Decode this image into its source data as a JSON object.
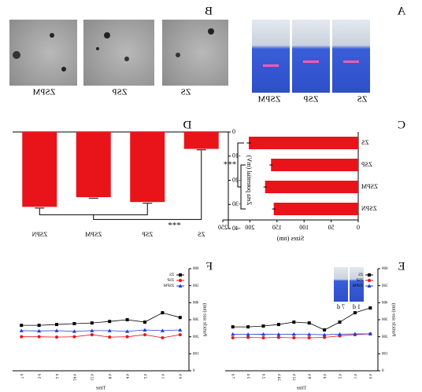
{
  "figure": {
    "panel_labels": [
      "A",
      "B",
      "C",
      "D",
      "E",
      "F"
    ],
    "photo_labels": [
      "ZS",
      "ZSP",
      "ZSPM"
    ],
    "tem_labels": [
      "ZS",
      "ZSP",
      "ZSPM"
    ],
    "inset_labels": [
      "1 d",
      "7 d"
    ]
  },
  "chart_data": [
    {
      "type": "hbar",
      "categories": [
        "ZS",
        "ZSP",
        "ZSPM",
        "ZSPN"
      ],
      "values": [
        202,
        161,
        172,
        156
      ],
      "errors": [
        4,
        3,
        3,
        3
      ],
      "color": "#e8141a",
      "xlim": [
        0,
        250
      ],
      "xticks": [
        0,
        50,
        100,
        150,
        200,
        250
      ],
      "xlabel": "Sizes (nm)",
      "annotation": "***"
    },
    {
      "type": "bar",
      "categories": [
        "ZS",
        "ZSP",
        "ZSPM",
        "ZSPN"
      ],
      "values": [
        -7,
        -29,
        -27,
        -31
      ],
      "errors": [
        0.4,
        0.5,
        0.4,
        0.5
      ],
      "color": "#e8141a",
      "ylim": [
        -40,
        0
      ],
      "yticks": [
        0,
        -10,
        -20,
        -30,
        -40
      ],
      "ylabel": "Zeta potential (mV)",
      "annotation": "***"
    },
    {
      "type": "line",
      "categories": [
        "0 h",
        "1 h",
        "2 h",
        "4 h",
        "8 h",
        "12 h",
        "24 h",
        "2 d",
        "3 d",
        "7 d"
      ],
      "ylim": [
        0,
        600
      ],
      "yticks": [
        0,
        100,
        200,
        300,
        400,
        500,
        600
      ],
      "ylabel": "Particle size (nm)",
      "xlabel": "Time",
      "legend": "upper left",
      "series": [
        {
          "name": "ZS",
          "color": "#000000",
          "marker": "square",
          "values": [
            369,
            341,
            286,
            240,
            281,
            286,
            272,
            263,
            258,
            258
          ]
        },
        {
          "name": "ZSP",
          "color": "#e8141a",
          "marker": "circle",
          "values": [
            217,
            212,
            205,
            196,
            194,
            194,
            196,
            194,
            196,
            194
          ]
        },
        {
          "name": "ZSPM",
          "color": "#1f3fd0",
          "marker": "triangle",
          "values": [
            217,
            217,
            215,
            212,
            214,
            215,
            214,
            215,
            214,
            215
          ]
        }
      ]
    },
    {
      "type": "line",
      "categories": [
        "0 h",
        "1 h",
        "2 h",
        "4 h",
        "8 h",
        "12 h",
        "24 h",
        "2 d",
        "3 d",
        "7 d"
      ],
      "ylim": [
        0,
        600
      ],
      "yticks": [
        0,
        100,
        200,
        300,
        400,
        500,
        600
      ],
      "ylabel": "Particle size (nm)",
      "xlabel": "Time",
      "legend": "upper left",
      "series": [
        {
          "name": "ZS",
          "color": "#000000",
          "marker": "square",
          "values": [
            313,
            341,
            286,
            300,
            290,
            281,
            277,
            272,
            267,
            267
          ]
        },
        {
          "name": "ZSP",
          "color": "#e8141a",
          "marker": "circle",
          "values": [
            212,
            194,
            212,
            200,
            198,
            212,
            200,
            198,
            200,
            200
          ]
        },
        {
          "name": "ZSPM",
          "color": "#1f3fd0",
          "marker": "triangle",
          "values": [
            240,
            236,
            240,
            232,
            236,
            236,
            232,
            236,
            234,
            236
          ]
        }
      ]
    }
  ]
}
